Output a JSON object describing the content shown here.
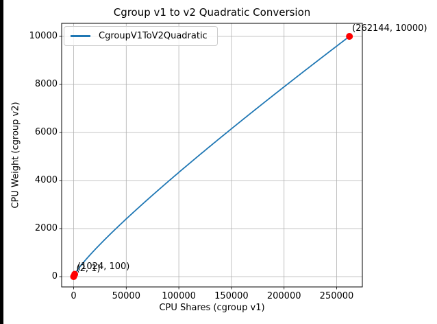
{
  "figure": {
    "background": "#ffffff",
    "left_edge_color": "#000000"
  },
  "chart": {
    "title": "Cgroup v1 to v2 Quadratic Conversion",
    "xlabel": "CPU Shares (cgroup v1)",
    "ylabel": "CPU Weight (cgroup v2)",
    "legend": {
      "label": "CgroupV1ToV2Quadratic"
    },
    "colors": {
      "line": "#1f77b4",
      "marker": "#ff0000",
      "grid": "#b0b0b0",
      "spine": "#000000",
      "legend_border": "#cccccc",
      "text": "#000000"
    }
  },
  "chart_data": {
    "type": "line",
    "title": "Cgroup v1 to v2 Quadratic Conversion",
    "xlabel": "CPU Shares (cgroup v1)",
    "ylabel": "CPU Weight (cgroup v2)",
    "legend": [
      "CgroupV1ToV2Quadratic"
    ],
    "legend_position": "upper left",
    "grid": true,
    "x_ticks": [
      0,
      50000,
      100000,
      150000,
      200000,
      250000
    ],
    "x_tick_labels": [
      "0",
      "50000",
      "100000",
      "150000",
      "200000",
      "250000"
    ],
    "y_ticks": [
      0,
      2000,
      4000,
      6000,
      8000,
      10000
    ],
    "y_tick_labels": [
      "0",
      "2000",
      "4000",
      "6000",
      "8000",
      "10000"
    ],
    "x_range": [
      2,
      262144
    ],
    "y_range": [
      1,
      10000
    ],
    "xlim": [
      -13105,
      275251
    ],
    "ylim": [
      -499,
      10500
    ],
    "curve": {
      "formula": "log10(y) = (L*L + 125*L)/612 - 7/34, where L = log2(x)",
      "log10_y": {
        "a": 0.0016339869,
        "b": 0.204248366,
        "c": -0.2058823529
      }
    },
    "series": [
      {
        "name": "CgroupV1ToV2Quadratic",
        "x": [
          2,
          4,
          8,
          16,
          32,
          64,
          128,
          256,
          512,
          1024,
          2048,
          4096,
          8192,
          16384,
          32768,
          65536,
          131072,
          262144
        ],
        "y": [
          1,
          1.6,
          2.6,
          4.3,
          7.2,
          12,
          20.1,
          34.1,
          58.2,
          100,
          173,
          302,
          532,
          942,
          1681,
          3024,
          5477,
          10000
        ]
      }
    ],
    "key_points": [
      {
        "x": 2,
        "y": 1,
        "label": "(2, 1)"
      },
      {
        "x": 1024,
        "y": 100,
        "label": "(1024, 100)"
      },
      {
        "x": 262144,
        "y": 10000,
        "label": "(262144, 10000)"
      }
    ]
  }
}
